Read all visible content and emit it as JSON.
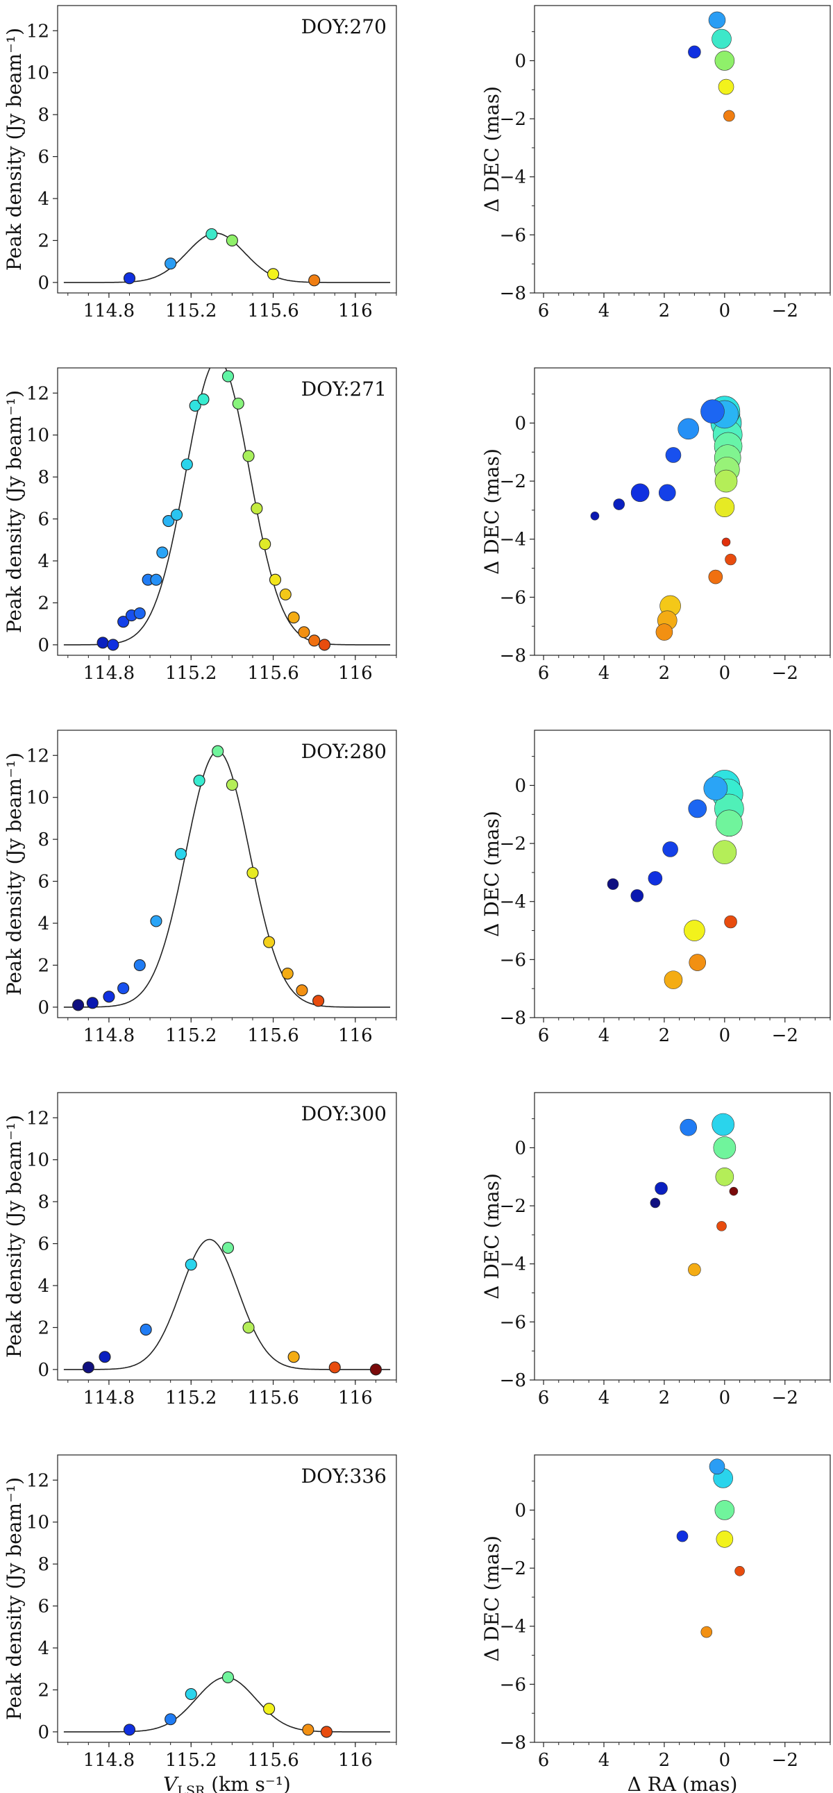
{
  "figure": {
    "left_ylabel": "Peak density (Jy beam⁻¹)",
    "right_ylabel": "Δ DEC (mas)",
    "xlabel_left": "V",
    "xlabel_left_sub": "LSR",
    "xlabel_left_unit": " (km s⁻¹)",
    "xlabel_right": "Δ RA (mas)"
  },
  "chart_data": [
    {
      "type": "scatter",
      "title": "DOY:270",
      "xlabel": "",
      "ylabel": "Peak density (Jy beam⁻¹)",
      "xlim": [
        114.55,
        116.2
      ],
      "ylim": [
        -0.5,
        13.2
      ],
      "xticks": [
        114.8,
        115.2,
        115.6,
        116.0
      ],
      "yticks": [
        0,
        2,
        4,
        6,
        8,
        10,
        12
      ],
      "fit": {
        "amp": 2.35,
        "center": 115.32,
        "sigma": 0.14
      },
      "x": [
        114.9,
        115.1,
        115.3,
        115.4,
        115.6,
        115.8
      ],
      "y": [
        0.2,
        0.9,
        2.3,
        2.0,
        0.4,
        0.1
      ],
      "colors": [
        "#1030e0",
        "#2a9df4",
        "#3de8c9",
        "#8ff06a",
        "#f2f21c",
        "#f07e12"
      ],
      "map": {
        "xlim": [
          6.3,
          -3.5
        ],
        "ylim": [
          -8,
          1.9
        ],
        "xticks": [
          6,
          4,
          2,
          0,
          -2
        ],
        "yticks": [
          0,
          -2,
          -4,
          -6,
          -8
        ],
        "ra": [
          0.25,
          0.1,
          0.0,
          -0.05,
          -0.15,
          1.0
        ],
        "dec": [
          1.4,
          0.75,
          0.0,
          -0.9,
          -1.9,
          0.3
        ],
        "size": [
          12,
          14,
          14,
          11,
          8,
          9
        ],
        "colors": [
          "#2a9df4",
          "#3de8c9",
          "#8ff06a",
          "#f2f21c",
          "#f07e12",
          "#1030e0"
        ]
      }
    },
    {
      "type": "scatter",
      "title": "DOY:271",
      "xlabel": "",
      "ylabel": "Peak density (Jy beam⁻¹)",
      "xlim": [
        114.55,
        116.2
      ],
      "ylim": [
        -0.5,
        13.2
      ],
      "xticks": [
        114.8,
        115.2,
        115.6,
        116.0
      ],
      "yticks": [
        0,
        2,
        4,
        6,
        8,
        10,
        12
      ],
      "fit": {
        "amp": 13.6,
        "center": 115.33,
        "sigma": 0.155
      },
      "x": [
        114.77,
        114.82,
        114.87,
        114.91,
        114.95,
        114.99,
        115.03,
        115.06,
        115.09,
        115.13,
        115.18,
        115.22,
        115.26,
        115.38,
        115.43,
        115.48,
        115.52,
        115.56,
        115.61,
        115.66,
        115.7,
        115.75,
        115.8,
        115.85
      ],
      "y": [
        0.1,
        0.0,
        1.1,
        1.4,
        1.5,
        3.1,
        3.1,
        4.4,
        5.9,
        6.2,
        8.6,
        11.4,
        11.7,
        12.8,
        11.5,
        9.0,
        6.5,
        4.8,
        3.1,
        2.4,
        1.3,
        0.6,
        0.2,
        0.0
      ],
      "colors": [
        "#0a20c0",
        "#1030e0",
        "#1440e8",
        "#1850ee",
        "#1c66f2",
        "#207cf4",
        "#2590f6",
        "#2aa4f6",
        "#2ab4f4",
        "#2ac4f0",
        "#2ad4ec",
        "#30e2e0",
        "#38ecd0",
        "#60f4a4",
        "#88f47c",
        "#a8f05c",
        "#c4ec40",
        "#e0ea28",
        "#f2e41c",
        "#f4c818",
        "#f4ac14",
        "#f29012",
        "#f07010",
        "#e84c0e"
      ],
      "map": {
        "xlim": [
          6.3,
          -3.5
        ],
        "ylim": [
          -8,
          1.9
        ],
        "xticks": [
          6,
          4,
          2,
          0,
          -2
        ],
        "yticks": [
          0,
          -2,
          -4,
          -6,
          -8
        ],
        "ra": [
          0.0,
          -0.05,
          -0.1,
          -0.12,
          -0.1,
          -0.08,
          -0.05,
          0.0,
          0.0,
          0.4,
          1.2,
          1.7,
          1.9,
          2.8,
          3.5,
          4.3,
          1.8,
          1.9,
          2.0,
          0.3,
          -0.2,
          -0.05,
          0.0
        ],
        "dec": [
          0.3,
          0.0,
          -0.4,
          -0.8,
          -1.2,
          -1.6,
          -2.0,
          -2.9,
          0.3,
          0.4,
          -0.2,
          -1.1,
          -2.4,
          -2.4,
          -2.8,
          -3.2,
          -6.3,
          -6.8,
          -7.2,
          -5.3,
          -4.7,
          -4.1,
          0.4
        ],
        "size": [
          22,
          22,
          21,
          20,
          19,
          18,
          16,
          14,
          20,
          17,
          15,
          11,
          12,
          13,
          8,
          6,
          15,
          14,
          12,
          10,
          8,
          6,
          22
        ],
        "colors": [
          "#2ad4ec",
          "#3ce8d4",
          "#50f0c0",
          "#68f4a8",
          "#80f490",
          "#98f278",
          "#b4ee58",
          "#e6ea24",
          "#2ab4f4",
          "#1c66f2",
          "#2590f6",
          "#1850ee",
          "#1440e8",
          "#1030e0",
          "#0a20c0",
          "#0a18b0",
          "#f4c818",
          "#f4ac14",
          "#f29012",
          "#f07010",
          "#e84c0e",
          "#e0300c",
          "#30e2e0"
        ]
      }
    },
    {
      "type": "scatter",
      "title": "DOY:280",
      "xlabel": "",
      "ylabel": "Peak density (Jy beam⁻¹)",
      "xlim": [
        114.55,
        116.2
      ],
      "ylim": [
        -0.5,
        13.2
      ],
      "xticks": [
        114.8,
        115.2,
        115.6,
        116.0
      ],
      "yticks": [
        0,
        2,
        4,
        6,
        8,
        10,
        12
      ],
      "fit": {
        "amp": 12.2,
        "center": 115.33,
        "sigma": 0.155
      },
      "x": [
        114.65,
        114.72,
        114.8,
        114.87,
        114.95,
        115.03,
        115.15,
        115.24,
        115.33,
        115.4,
        115.5,
        115.58,
        115.67,
        115.74,
        115.82
      ],
      "y": [
        0.1,
        0.2,
        0.5,
        0.9,
        2.0,
        4.1,
        7.3,
        10.8,
        12.2,
        10.6,
        6.4,
        3.1,
        1.6,
        0.8,
        0.3
      ],
      "colors": [
        "#101080",
        "#0a18b0",
        "#1030e0",
        "#1850ee",
        "#207cf4",
        "#2aa4f6",
        "#2ad4ec",
        "#38ecd0",
        "#70f49c",
        "#b4ee58",
        "#e6ea24",
        "#f4d01a",
        "#f4ac14",
        "#f29012",
        "#e84c0e"
      ],
      "map": {
        "xlim": [
          6.3,
          -3.5
        ],
        "ylim": [
          -8,
          1.9
        ],
        "xticks": [
          6,
          4,
          2,
          0,
          -2
        ],
        "yticks": [
          0,
          -2,
          -4,
          -6,
          -8
        ],
        "ra": [
          0.0,
          -0.1,
          -0.15,
          -0.15,
          0.0,
          0.3,
          0.9,
          1.8,
          2.3,
          2.9,
          3.7,
          1.0,
          0.9,
          1.7,
          -0.2
        ],
        "dec": [
          0.0,
          -0.3,
          -0.8,
          -1.3,
          -2.3,
          -0.1,
          -0.8,
          -2.2,
          -3.2,
          -3.8,
          -3.4,
          -5.0,
          -6.1,
          -6.7,
          -4.7
        ],
        "size": [
          22,
          22,
          21,
          19,
          17,
          17,
          13,
          11,
          10,
          9,
          8,
          15,
          12,
          13,
          9
        ],
        "colors": [
          "#30e2e0",
          "#38ecd0",
          "#50f0b8",
          "#70f49c",
          "#b4ee58",
          "#2aa4f6",
          "#1c66f2",
          "#1440e8",
          "#1030e0",
          "#0a18b0",
          "#101080",
          "#f2f21c",
          "#f29012",
          "#f4ac14",
          "#e84c0e"
        ]
      }
    },
    {
      "type": "scatter",
      "title": "DOY:300",
      "xlabel": "",
      "ylabel": "Peak density (Jy beam⁻¹)",
      "xlim": [
        114.55,
        116.2
      ],
      "ylim": [
        -0.5,
        13.2
      ],
      "xticks": [
        114.8,
        115.2,
        115.6,
        116.0
      ],
      "yticks": [
        0,
        2,
        4,
        6,
        8,
        10,
        12
      ],
      "fit": {
        "amp": 6.2,
        "center": 115.29,
        "sigma": 0.14
      },
      "x": [
        114.7,
        114.78,
        114.98,
        115.2,
        115.38,
        115.48,
        115.7,
        115.9,
        116.1
      ],
      "y": [
        0.1,
        0.6,
        1.9,
        5.0,
        5.8,
        2.0,
        0.6,
        0.1,
        0.0
      ],
      "colors": [
        "#101080",
        "#0a20c0",
        "#207cf4",
        "#2ad4ec",
        "#70f49c",
        "#b4ee58",
        "#f4ac14",
        "#e84c0e",
        "#7a0a0a"
      ],
      "map": {
        "xlim": [
          6.3,
          -3.5
        ],
        "ylim": [
          -8,
          1.9
        ],
        "xticks": [
          6,
          4,
          2,
          0,
          -2
        ],
        "yticks": [
          0,
          -2,
          -4,
          -6,
          -8
        ],
        "ra": [
          0.05,
          0.0,
          0.0,
          1.2,
          2.1,
          2.3,
          1.0,
          0.1,
          -0.3
        ],
        "dec": [
          0.8,
          0.0,
          -1.0,
          0.7,
          -1.4,
          -1.9,
          -4.2,
          -2.7,
          -1.5
        ],
        "size": [
          16,
          16,
          13,
          12,
          9,
          7,
          9,
          7,
          6
        ],
        "colors": [
          "#2ad4ec",
          "#70f49c",
          "#b4ee58",
          "#207cf4",
          "#0a20c0",
          "#101080",
          "#f4ac14",
          "#e84c0e",
          "#7a0a0a"
        ]
      }
    },
    {
      "type": "scatter",
      "title": "DOY:336",
      "xlabel": "V_LSR (km s⁻¹)",
      "ylabel": "Peak density (Jy beam⁻¹)",
      "xlim": [
        114.55,
        116.2
      ],
      "ylim": [
        -0.5,
        13.2
      ],
      "xticks": [
        114.8,
        115.2,
        115.6,
        116.0
      ],
      "yticks": [
        0,
        2,
        4,
        6,
        8,
        10,
        12
      ],
      "fit": {
        "amp": 2.6,
        "center": 115.37,
        "sigma": 0.145
      },
      "x": [
        114.9,
        115.1,
        115.2,
        115.38,
        115.58,
        115.77,
        115.86
      ],
      "y": [
        0.1,
        0.6,
        1.8,
        2.6,
        1.1,
        0.1,
        0.0
      ],
      "colors": [
        "#1030e0",
        "#207cf4",
        "#2ad4ec",
        "#70f49c",
        "#f2f21c",
        "#f29012",
        "#e84c0e"
      ],
      "map": {
        "xlim": [
          6.3,
          -3.5
        ],
        "ylim": [
          -8,
          1.9
        ],
        "xticks": [
          6,
          4,
          2,
          0,
          -2
        ],
        "yticks": [
          0,
          -2,
          -4,
          -6,
          -8
        ],
        "ra": [
          0.25,
          0.05,
          0.0,
          0.0,
          1.4,
          -0.5,
          0.6
        ],
        "dec": [
          1.5,
          1.1,
          0.0,
          -1.0,
          -0.9,
          -2.1,
          -4.2
        ],
        "size": [
          11,
          14,
          14,
          12,
          8,
          7,
          8
        ],
        "colors": [
          "#2a9df4",
          "#2ad4ec",
          "#70f49c",
          "#f2f21c",
          "#1030e0",
          "#e84c0e",
          "#f29012"
        ]
      }
    }
  ]
}
